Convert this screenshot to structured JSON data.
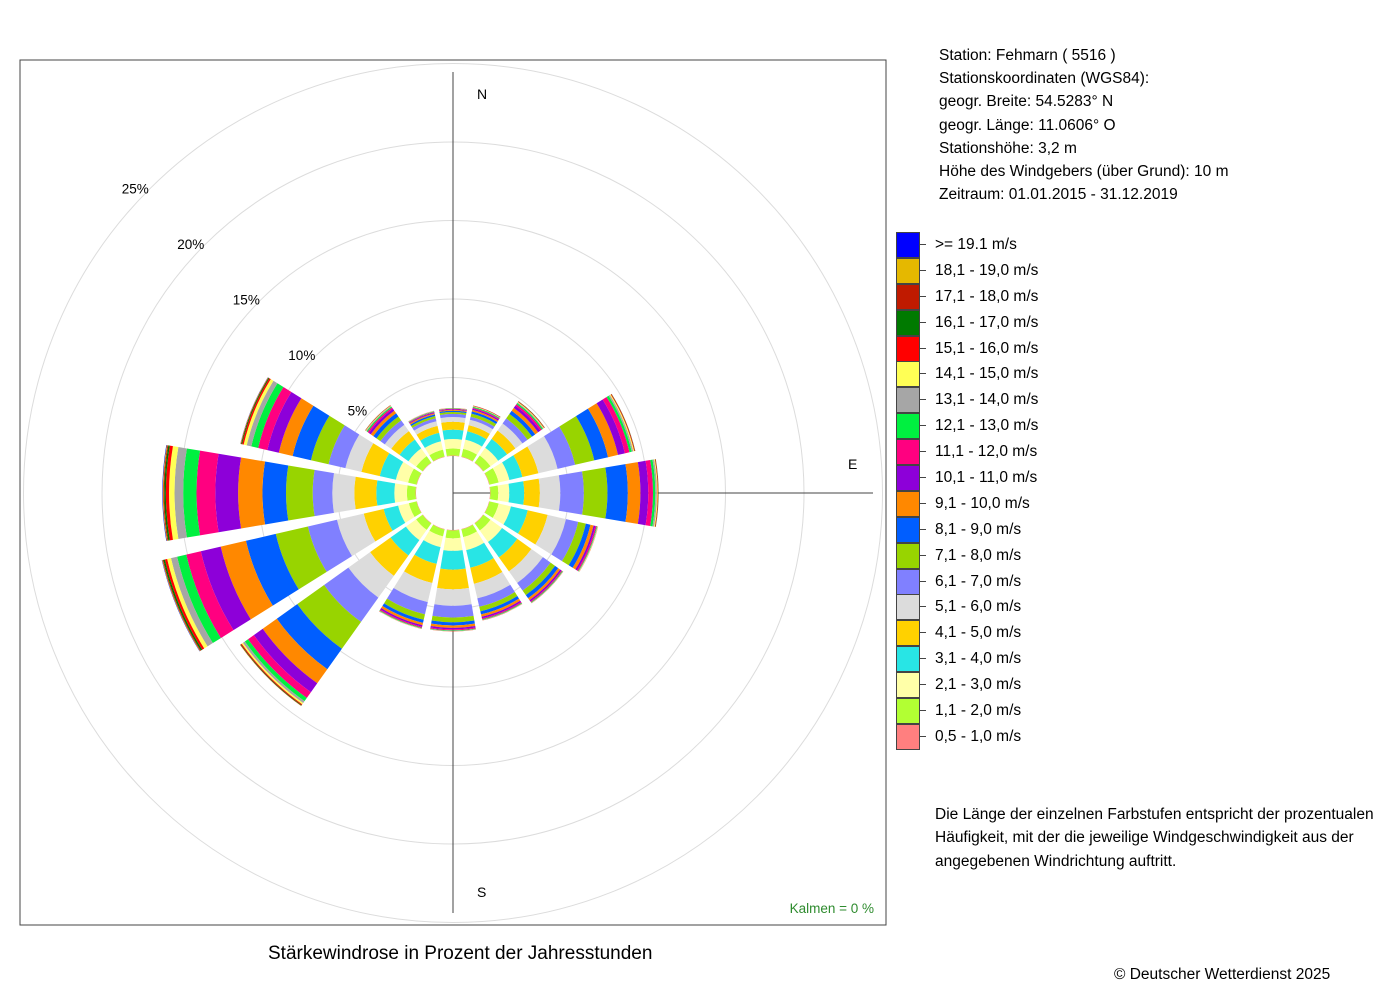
{
  "chart_data": {
    "type": "windrose",
    "title": "Stärkewindrose in Prozent der Jahresstunden",
    "directions": [
      "N",
      "NNO",
      "NO",
      "ONO",
      "O",
      "OSO",
      "SO",
      "SSO",
      "S",
      "SSW",
      "SW",
      "WSW",
      "W",
      "WNW",
      "NW",
      "NNW"
    ],
    "axis_labels": {
      "north": "N",
      "east": "E",
      "south": "S"
    },
    "radial_ticks": [
      {
        "value": 5,
        "label": "5%"
      },
      {
        "value": 10,
        "label": "10%"
      },
      {
        "value": 15,
        "label": "15%"
      },
      {
        "value": 20,
        "label": "20%"
      },
      {
        "value": 25,
        "label": "25%"
      }
    ],
    "radial_unit": "percent",
    "calm_label": "Kalmen  =  0 %",
    "speed_classes": [
      {
        "label": "0,5 - 1,0 m/s",
        "color": "#FF7F7F"
      },
      {
        "label": "1,1 - 2,0 m/s",
        "color": "#B2FF33"
      },
      {
        "label": "2,1 - 3,0 m/s",
        "color": "#FFFFA8"
      },
      {
        "label": "3,1 - 4,0 m/s",
        "color": "#28E5E5"
      },
      {
        "label": "4,1 - 5,0 m/s",
        "color": "#FFD100"
      },
      {
        "label": "5,1 - 6,0 m/s",
        "color": "#DCDCDC"
      },
      {
        "label": "6,1 - 7,0 m/s",
        "color": "#8080FF"
      },
      {
        "label": "7,1 - 8,0 m/s",
        "color": "#98D400"
      },
      {
        "label": "8,1 - 9,0 m/s",
        "color": "#005EFF"
      },
      {
        "label": "9,1 - 10,0 m/s",
        "color": "#FF8800"
      },
      {
        "label": "10,1 - 11,0 m/s",
        "color": "#8D00D9"
      },
      {
        "label": "11,1 - 12,0 m/s",
        "color": "#FF0080"
      },
      {
        "label": "12,1 - 13,0 m/s",
        "color": "#00F040"
      },
      {
        "label": "13,1 - 14,0 m/s",
        "color": "#A6A6A6"
      },
      {
        "label": "14,1 - 15,0 m/s",
        "color": "#FFFF55"
      },
      {
        "label": "15,1 - 16,0 m/s",
        "color": "#FF0000"
      },
      {
        "label": "16,1 - 17,0 m/s",
        "color": "#007A00"
      },
      {
        "label": "17,1 - 18,0 m/s",
        "color": "#C01A00"
      },
      {
        "label": "18,1 - 19,0 m/s",
        "color": "#E5B800"
      },
      {
        "label": ">= 19.1 m/s",
        "color": "#0000FF"
      }
    ],
    "series": [
      {
        "direction": "N",
        "values": [
          0.03,
          0.45,
          0.6,
          0.6,
          0.5,
          0.3,
          0.2,
          0.12,
          0.08,
          0.06,
          0.04,
          0.03,
          0.02,
          0.01,
          0.01,
          0.01,
          0,
          0,
          0,
          0
        ]
      },
      {
        "direction": "NNO",
        "values": [
          0.03,
          0.5,
          0.6,
          0.55,
          0.4,
          0.35,
          0.2,
          0.2,
          0.15,
          0.1,
          0.08,
          0.06,
          0.05,
          0.03,
          0.02,
          0.02,
          0.01,
          0.01,
          0,
          0
        ]
      },
      {
        "direction": "NO",
        "values": [
          0.03,
          0.55,
          0.6,
          0.7,
          0.65,
          0.55,
          0.4,
          0.35,
          0.25,
          0.22,
          0.18,
          0.12,
          0.08,
          0.05,
          0.04,
          0.03,
          0.02,
          0.01,
          0,
          0
        ]
      },
      {
        "direction": "ONO",
        "values": [
          0.03,
          0.6,
          0.7,
          0.85,
          1.05,
          1.25,
          1.15,
          1.25,
          0.9,
          0.65,
          0.45,
          0.3,
          0.15,
          0.1,
          0.06,
          0.04,
          0.02,
          0.01,
          0,
          0
        ]
      },
      {
        "direction": "O",
        "values": [
          0.03,
          0.5,
          0.7,
          0.95,
          1.0,
          1.3,
          1.5,
          1.5,
          1.3,
          0.8,
          0.5,
          0.3,
          0.15,
          0.1,
          0.05,
          0.03,
          0.02,
          0.01,
          0,
          0
        ]
      },
      {
        "direction": "OSO",
        "values": [
          0.03,
          0.6,
          0.8,
          1.1,
          1.3,
          1.2,
          0.8,
          0.5,
          0.3,
          0.2,
          0.12,
          0.08,
          0.04,
          0.03,
          0.02,
          0.01,
          0,
          0,
          0,
          0
        ]
      },
      {
        "direction": "SO",
        "values": [
          0.03,
          0.55,
          0.9,
          1.2,
          1.1,
          0.9,
          0.6,
          0.35,
          0.25,
          0.15,
          0.1,
          0.06,
          0.04,
          0.02,
          0.01,
          0.01,
          0,
          0,
          0,
          0
        ]
      },
      {
        "direction": "SSO",
        "values": [
          0.03,
          0.5,
          0.85,
          1.15,
          1.05,
          0.95,
          0.55,
          0.3,
          0.2,
          0.15,
          0.1,
          0.07,
          0.04,
          0.02,
          0.01,
          0.01,
          0,
          0,
          0,
          0
        ]
      },
      {
        "direction": "S",
        "values": [
          0.03,
          0.5,
          0.8,
          1.2,
          1.25,
          1.05,
          0.75,
          0.3,
          0.2,
          0.15,
          0.1,
          0.06,
          0.04,
          0.02,
          0.01,
          0.01,
          0,
          0,
          0,
          0
        ]
      },
      {
        "direction": "SSW",
        "values": [
          0.03,
          0.45,
          0.7,
          1.1,
          1.25,
          1.25,
          0.8,
          0.35,
          0.2,
          0.15,
          0.1,
          0.07,
          0.04,
          0.02,
          0.01,
          0.01,
          0,
          0,
          0,
          0
        ]
      },
      {
        "direction": "SW",
        "values": [
          0.03,
          0.5,
          0.8,
          1.2,
          1.6,
          1.7,
          1.9,
          2.1,
          1.6,
          1.1,
          0.7,
          0.45,
          0.25,
          0.15,
          0.1,
          0.06,
          0.04,
          0.02,
          0.01,
          0
        ]
      },
      {
        "direction": "WSW",
        "values": [
          0.03,
          0.5,
          0.7,
          0.95,
          1.3,
          1.75,
          1.9,
          2.1,
          1.95,
          1.65,
          1.3,
          0.95,
          0.6,
          0.4,
          0.25,
          0.15,
          0.1,
          0.05,
          0.03,
          0.02
        ]
      },
      {
        "direction": "W",
        "values": [
          0.03,
          0.55,
          0.8,
          1.15,
          1.4,
          1.4,
          1.25,
          1.7,
          1.5,
          1.55,
          1.45,
          1.2,
          0.85,
          0.55,
          0.35,
          0.2,
          0.1,
          0.06,
          0.04,
          0.03
        ]
      },
      {
        "direction": "WNW",
        "values": [
          0.03,
          0.55,
          0.8,
          1.05,
          1.2,
          1.05,
          1.1,
          1.15,
          1.2,
          0.9,
          0.75,
          0.6,
          0.45,
          0.3,
          0.2,
          0.1,
          0.06,
          0.03,
          0.02,
          0.01
        ]
      },
      {
        "direction": "NW",
        "values": [
          0.03,
          0.5,
          0.6,
          0.7,
          0.65,
          0.5,
          0.35,
          0.3,
          0.25,
          0.2,
          0.15,
          0.1,
          0.07,
          0.05,
          0.03,
          0.02,
          0.01,
          0.01,
          0,
          0
        ]
      },
      {
        "direction": "NNW",
        "values": [
          0.03,
          0.45,
          0.55,
          0.55,
          0.45,
          0.3,
          0.2,
          0.15,
          0.1,
          0.08,
          0.05,
          0.04,
          0.03,
          0.02,
          0.01,
          0.01,
          0,
          0,
          0,
          0
        ]
      }
    ]
  },
  "station": {
    "line1": "Station:  Fehmarn  ( 5516 )",
    "line2": "Stationskoordinaten (WGS84):",
    "line3": "geogr. Breite: 54.5283° N",
    "line4": "geogr. Länge: 11.0606° O",
    "line5": "Stationshöhe: 3,2 m",
    "line6": "Höhe des Windgebers (über Grund): 10 m",
    "line7": "Zeitraum: 01.01.2015 - 31.12.2019"
  },
  "note": {
    "line1": "Die Länge der einzelnen Farbstufen entspricht der prozentualen",
    "line2": "Häufigkeit, mit der die jeweilige Windgeschwindigkeit aus der",
    "line3": "angegebenen Windrichtung auftritt."
  },
  "copyright": "© Deutscher Wetterdienst  2025"
}
